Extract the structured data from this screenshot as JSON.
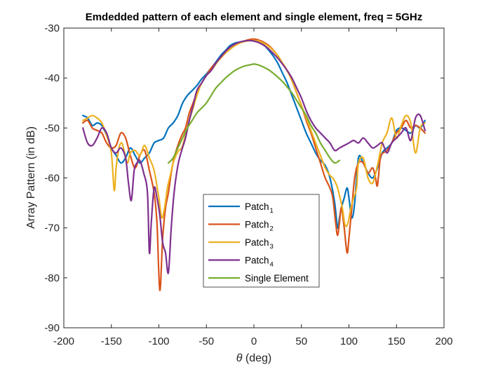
{
  "chart_data": {
    "type": "line",
    "title": "Emdedded pattern of each element and single element, freq = 5GHz",
    "xlabel": {
      "symbol": "θ",
      "text": " (deg)"
    },
    "ylabel": "Array Pattern (in dB)",
    "xlim": [
      -200,
      200
    ],
    "ylim": [
      -90,
      -30
    ],
    "xticks": [
      -200,
      -150,
      -100,
      -50,
      0,
      50,
      100,
      150,
      200
    ],
    "yticks": [
      -90,
      -80,
      -70,
      -60,
      -50,
      -40,
      -30
    ],
    "grid": false,
    "legend_position": "bottom-center",
    "series": [
      {
        "label": "Patch",
        "sub": "1",
        "color": "#0072BD",
        "x": [
          -180,
          -175,
          -170,
          -165,
          -160,
          -155,
          -150,
          -145,
          -140,
          -135,
          -130,
          -125,
          -120,
          -115,
          -110,
          -105,
          -100,
          -95,
          -90,
          -85,
          -80,
          -75,
          -70,
          -65,
          -60,
          -55,
          -50,
          -45,
          -40,
          -35,
          -30,
          -25,
          -20,
          -15,
          -10,
          -5,
          0,
          5,
          10,
          15,
          20,
          25,
          30,
          35,
          40,
          45,
          50,
          55,
          60,
          65,
          70,
          75,
          80,
          85,
          88,
          90,
          92,
          95,
          98,
          100,
          103,
          106,
          110,
          115,
          120,
          125,
          130,
          135,
          140,
          145,
          150,
          155,
          160,
          165,
          170,
          175,
          180
        ],
        "y": [
          -47.5,
          -48,
          -49.5,
          -49,
          -49.5,
          -51.5,
          -54,
          -55.5,
          -57,
          -56,
          -54,
          -55.5,
          -57,
          -56,
          -55,
          -53,
          -52.5,
          -52,
          -50,
          -49,
          -47.5,
          -45,
          -43.5,
          -42.5,
          -41.5,
          -40.2,
          -39.2,
          -38,
          -36.8,
          -35.5,
          -34.5,
          -33.5,
          -33,
          -32.8,
          -32.6,
          -32.5,
          -32.6,
          -32.8,
          -33.3,
          -34.3,
          -35.5,
          -37,
          -39,
          -41,
          -43.5,
          -46,
          -48.5,
          -51,
          -53,
          -55,
          -56.5,
          -57.5,
          -60,
          -65,
          -70,
          -68,
          -66,
          -64,
          -62,
          -64,
          -68,
          -65,
          -56,
          -57,
          -59,
          -60,
          -58,
          -55,
          -54,
          -53,
          -50.5,
          -50,
          -50.5,
          -51,
          -49.5,
          -50,
          -48.5
        ]
      },
      {
        "label": "Patch",
        "sub": "2",
        "color": "#D95319",
        "x": [
          -180,
          -175,
          -170,
          -165,
          -160,
          -155,
          -150,
          -145,
          -140,
          -135,
          -130,
          -125,
          -120,
          -115,
          -110,
          -105,
          -102,
          -99,
          -96,
          -93,
          -90,
          -87,
          -84,
          -80,
          -76,
          -72,
          -68,
          -64,
          -60,
          -55,
          -50,
          -45,
          -40,
          -35,
          -30,
          -25,
          -20,
          -15,
          -10,
          -5,
          0,
          5,
          10,
          15,
          20,
          25,
          30,
          35,
          40,
          45,
          50,
          55,
          60,
          65,
          70,
          75,
          80,
          83,
          86,
          88,
          90,
          92,
          95,
          98,
          100,
          103,
          106,
          110,
          115,
          120,
          125,
          128,
          130,
          133,
          136,
          140,
          145,
          150,
          155,
          160,
          165,
          170,
          175,
          180
        ],
        "y": [
          -49,
          -48.5,
          -50,
          -50.5,
          -51,
          -53,
          -54,
          -53.5,
          -51,
          -52,
          -55.5,
          -58,
          -55.5,
          -54.5,
          -58.5,
          -63,
          -69,
          -82.5,
          -72,
          -66,
          -63,
          -59,
          -56,
          -53.5,
          -51.5,
          -50,
          -47,
          -45,
          -43,
          -41,
          -39.5,
          -38,
          -37,
          -36,
          -35,
          -34.2,
          -33.5,
          -33,
          -32.6,
          -32.3,
          -32.2,
          -32.4,
          -32.8,
          -33.4,
          -34.3,
          -35.5,
          -37,
          -38.5,
          -40.5,
          -43,
          -45.5,
          -48.5,
          -51,
          -54,
          -57,
          -60,
          -62,
          -64,
          -69,
          -71.5,
          -69,
          -66,
          -70,
          -75,
          -72,
          -66,
          -60,
          -57,
          -57,
          -59,
          -58,
          -60,
          -61.5,
          -56,
          -55,
          -54.5,
          -53,
          -51,
          -50,
          -48.5,
          -50,
          -49.5,
          -50,
          -51
        ]
      },
      {
        "label": "Patch",
        "sub": "3",
        "color": "#EDB120",
        "x": [
          -180,
          -175,
          -170,
          -165,
          -160,
          -155,
          -150,
          -147,
          -145,
          -142,
          -139,
          -136,
          -133,
          -130,
          -125,
          -120,
          -115,
          -110,
          -105,
          -100,
          -97,
          -94,
          -91,
          -88,
          -85,
          -82,
          -79,
          -76,
          -72,
          -68,
          -64,
          -60,
          -55,
          -50,
          -45,
          -40,
          -35,
          -30,
          -25,
          -20,
          -15,
          -10,
          -5,
          0,
          5,
          10,
          15,
          20,
          25,
          30,
          35,
          40,
          45,
          50,
          55,
          60,
          65,
          70,
          75,
          80,
          83,
          86,
          88,
          90,
          93,
          96,
          99,
          102,
          105,
          108,
          110,
          115,
          120,
          125,
          130,
          135,
          140,
          145,
          150,
          155,
          160,
          165,
          170,
          175,
          180
        ],
        "y": [
          -48.5,
          -48,
          -47.5,
          -48,
          -49,
          -51.5,
          -55,
          -62.5,
          -58,
          -54,
          -53,
          -55,
          -57,
          -55,
          -54.5,
          -55.5,
          -53.5,
          -56,
          -58.5,
          -64,
          -68,
          -66,
          -62,
          -59.5,
          -57,
          -55.5,
          -54.5,
          -54,
          -51.5,
          -48.5,
          -46,
          -43.5,
          -41,
          -39.5,
          -38.5,
          -37.2,
          -36,
          -35,
          -34.2,
          -33.5,
          -33,
          -32.7,
          -32.5,
          -32.5,
          -32.6,
          -33,
          -33.6,
          -34.4,
          -35.5,
          -37,
          -38.5,
          -40.5,
          -43,
          -45.5,
          -48,
          -50.5,
          -53,
          -55.5,
          -58,
          -59.5,
          -60,
          -61,
          -62,
          -63.5,
          -66,
          -69.5,
          -69,
          -66,
          -64,
          -62,
          -57,
          -56,
          -60,
          -61,
          -57.5,
          -53,
          -51,
          -48,
          -52,
          -49.5,
          -47.5,
          -49,
          -55,
          -50,
          -49
        ]
      },
      {
        "label": "Patch",
        "sub": "4",
        "color": "#7E2F8E",
        "x": [
          -180,
          -175,
          -170,
          -165,
          -160,
          -155,
          -150,
          -145,
          -140,
          -135,
          -132,
          -129,
          -126,
          -123,
          -120,
          -116,
          -112,
          -110,
          -108,
          -105,
          -102,
          -99,
          -96,
          -93,
          -90,
          -87,
          -84,
          -80,
          -76,
          -72,
          -68,
          -64,
          -60,
          -55,
          -50,
          -45,
          -40,
          -35,
          -30,
          -25,
          -20,
          -15,
          -10,
          -5,
          0,
          5,
          10,
          15,
          20,
          25,
          30,
          35,
          40,
          45,
          50,
          55,
          60,
          65,
          70,
          75,
          80,
          85,
          90,
          95,
          100,
          105,
          110,
          115,
          120,
          125,
          130,
          135,
          140,
          145,
          150,
          155,
          160,
          165,
          170,
          175,
          180
        ],
        "y": [
          -50,
          -53,
          -53.5,
          -52,
          -50,
          -51,
          -54,
          -55,
          -54,
          -56,
          -61,
          -64.5,
          -58.5,
          -57,
          -56.5,
          -59,
          -63,
          -75,
          -69,
          -62,
          -64,
          -67.5,
          -73,
          -75,
          -79,
          -70,
          -63,
          -57.5,
          -54.5,
          -52,
          -48.5,
          -45.5,
          -42.5,
          -41,
          -39.5,
          -38.5,
          -37,
          -35.8,
          -34.7,
          -33.8,
          -33.2,
          -32.8,
          -32.6,
          -32.5,
          -32.6,
          -32.9,
          -33.4,
          -34.1,
          -35,
          -36,
          -37.2,
          -38.5,
          -40,
          -42,
          -44,
          -46.5,
          -48.5,
          -50,
          -51,
          -52,
          -53,
          -54.5,
          -54,
          -53.5,
          -53,
          -52.5,
          -53,
          -52,
          -53,
          -54,
          -53.5,
          -53,
          -55,
          -53,
          -52,
          -51,
          -50,
          -52.5,
          -48,
          -47.5,
          -50.5
        ]
      },
      {
        "label": "Single Element",
        "sub": "",
        "color": "#77AC30",
        "x": [
          -90,
          -85,
          -80,
          -75,
          -70,
          -65,
          -60,
          -55,
          -50,
          -45,
          -40,
          -35,
          -30,
          -25,
          -20,
          -15,
          -10,
          -5,
          0,
          5,
          10,
          15,
          20,
          25,
          30,
          35,
          40,
          45,
          50,
          55,
          60,
          65,
          70,
          75,
          80,
          85,
          90
        ],
        "y": [
          -57,
          -56,
          -54,
          -52,
          -50,
          -48.5,
          -47,
          -46,
          -45,
          -43.5,
          -42,
          -41,
          -40,
          -39.2,
          -38.5,
          -38,
          -37.6,
          -37.4,
          -37.2,
          -37.4,
          -37.8,
          -38.3,
          -39,
          -39.8,
          -40.7,
          -41.8,
          -43,
          -44.5,
          -46,
          -47.5,
          -49.5,
          -51,
          -53,
          -54.5,
          -56,
          -57,
          -56.5
        ]
      }
    ]
  }
}
